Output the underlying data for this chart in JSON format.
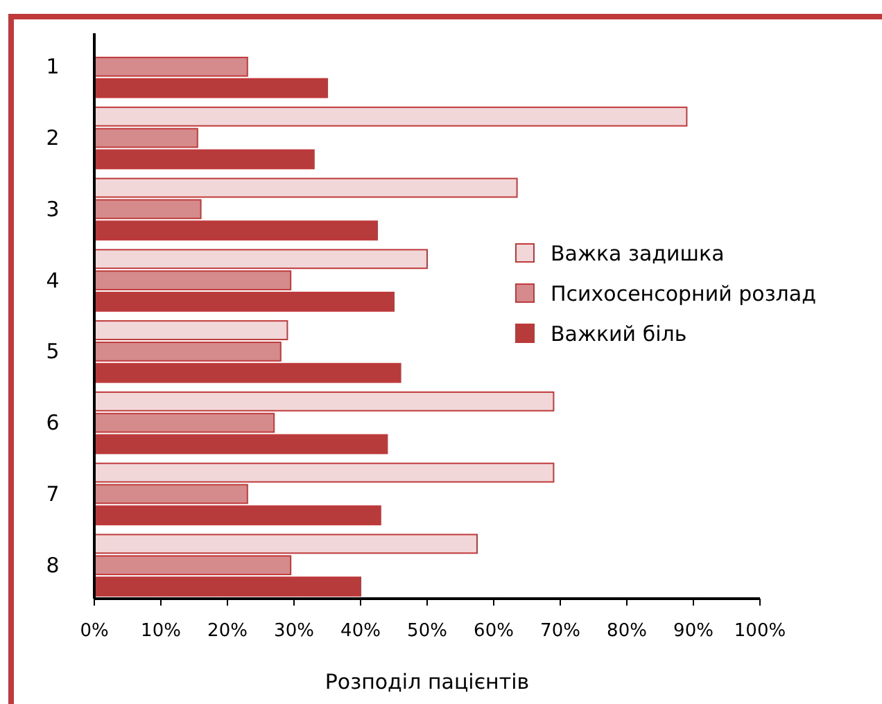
{
  "chart_data": {
    "type": "bar",
    "orientation": "horizontal",
    "xlabel": "Розподіл пацієнтів",
    "categories": [
      "1",
      "2",
      "3",
      "4",
      "5",
      "6",
      "7",
      "8"
    ],
    "series": [
      {
        "name": "Важка задишка",
        "color": "#f2d7d8",
        "values": [
          null,
          89,
          63.5,
          50,
          29,
          69,
          69,
          57.5
        ]
      },
      {
        "name": "Психосенсорний розлад",
        "color": "#d58b8b",
        "values": [
          23,
          15.5,
          16,
          29.5,
          28,
          27,
          23,
          29.5
        ]
      },
      {
        "name": "Важкий біль",
        "color": "#b83b3b",
        "values": [
          35,
          33,
          42.5,
          45,
          46,
          44,
          43,
          40
        ]
      }
    ],
    "xlim": [
      0,
      100
    ],
    "xticks": [
      {
        "value": 0,
        "label": "0%"
      },
      {
        "value": 10,
        "label": "10%"
      },
      {
        "value": 20,
        "label": "20%"
      },
      {
        "value": 30,
        "label": "30%"
      },
      {
        "value": 40,
        "label": "40%"
      },
      {
        "value": 50,
        "label": "50%"
      },
      {
        "value": 60,
        "label": "60%"
      },
      {
        "value": 70,
        "label": "70%"
      },
      {
        "value": 80,
        "label": "80%"
      },
      {
        "value": 90,
        "label": "90%"
      },
      {
        "value": 100,
        "label": "100%"
      }
    ],
    "grid": false,
    "legend": "right"
  }
}
